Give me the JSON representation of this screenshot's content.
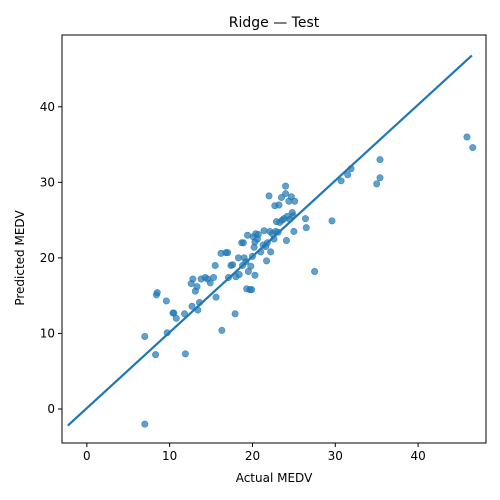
{
  "chart_data": {
    "type": "scatter",
    "title": "Ridge — Test",
    "xlabel": "Actual MEDV",
    "ylabel": "Predicted MEDV",
    "xlim": [
      -3.0,
      48.2
    ],
    "ylim": [
      -4.5,
      49.5
    ],
    "xticks": [
      0,
      10,
      20,
      30,
      40
    ],
    "yticks": [
      0,
      10,
      20,
      30,
      40
    ],
    "grid": false,
    "colors": {
      "points": "#1f77b4",
      "line": "#1f77b4"
    },
    "series": [
      {
        "type": "scatter",
        "points": [
          [
            7.0,
            -2.0
          ],
          [
            7.0,
            9.6
          ],
          [
            8.3,
            7.2
          ],
          [
            8.4,
            15.1
          ],
          [
            8.5,
            15.4
          ],
          [
            9.6,
            14.3
          ],
          [
            9.7,
            10.1
          ],
          [
            10.4,
            12.7
          ],
          [
            10.5,
            12.7
          ],
          [
            10.8,
            12.0
          ],
          [
            11.8,
            12.6
          ],
          [
            11.9,
            7.3
          ],
          [
            12.6,
            16.6
          ],
          [
            12.7,
            13.6
          ],
          [
            12.8,
            17.2
          ],
          [
            13.1,
            15.6
          ],
          [
            13.3,
            16.2
          ],
          [
            13.4,
            13.1
          ],
          [
            13.6,
            14.1
          ],
          [
            13.8,
            17.2
          ],
          [
            14.3,
            17.4
          ],
          [
            14.6,
            17.2
          ],
          [
            14.9,
            16.7
          ],
          [
            15.3,
            17.4
          ],
          [
            15.5,
            19.0
          ],
          [
            15.6,
            14.8
          ],
          [
            16.2,
            20.6
          ],
          [
            16.3,
            10.4
          ],
          [
            16.8,
            20.7
          ],
          [
            17.0,
            20.7
          ],
          [
            17.1,
            17.4
          ],
          [
            17.4,
            19.0
          ],
          [
            17.6,
            19.1
          ],
          [
            17.9,
            12.6
          ],
          [
            18.0,
            17.5
          ],
          [
            18.3,
            20.0
          ],
          [
            18.4,
            17.8
          ],
          [
            18.7,
            22.0
          ],
          [
            18.8,
            19.0
          ],
          [
            18.9,
            22.0
          ],
          [
            19.0,
            20.0
          ],
          [
            19.2,
            19.5
          ],
          [
            19.3,
            15.9
          ],
          [
            19.4,
            23.0
          ],
          [
            19.5,
            18.2
          ],
          [
            19.7,
            15.8
          ],
          [
            19.8,
            18.9
          ],
          [
            19.9,
            15.8
          ],
          [
            20.0,
            20.2
          ],
          [
            20.1,
            22.8
          ],
          [
            20.2,
            21.4
          ],
          [
            20.3,
            22.1
          ],
          [
            20.3,
            17.7
          ],
          [
            20.4,
            23.2
          ],
          [
            20.6,
            22.5
          ],
          [
            20.7,
            23.1
          ],
          [
            21.0,
            20.8
          ],
          [
            21.3,
            21.7
          ],
          [
            21.4,
            23.6
          ],
          [
            21.6,
            21.5
          ],
          [
            21.7,
            19.6
          ],
          [
            21.8,
            22.0
          ],
          [
            22.0,
            28.2
          ],
          [
            22.1,
            23.5
          ],
          [
            22.2,
            20.8
          ],
          [
            22.4,
            23.2
          ],
          [
            22.6,
            22.5
          ],
          [
            22.7,
            26.9
          ],
          [
            22.8,
            23.5
          ],
          [
            22.9,
            24.8
          ],
          [
            23.1,
            23.4
          ],
          [
            23.2,
            27.0
          ],
          [
            23.3,
            24.7
          ],
          [
            23.5,
            28.0
          ],
          [
            23.6,
            25.0
          ],
          [
            23.8,
            25.2
          ],
          [
            24.0,
            29.5
          ],
          [
            24.0,
            28.5
          ],
          [
            24.1,
            22.3
          ],
          [
            24.2,
            25.5
          ],
          [
            24.4,
            27.5
          ],
          [
            24.5,
            25.1
          ],
          [
            24.7,
            28.1
          ],
          [
            24.8,
            26.0
          ],
          [
            24.9,
            25.6
          ],
          [
            25.0,
            23.5
          ],
          [
            25.1,
            27.5
          ],
          [
            26.4,
            25.2
          ],
          [
            26.5,
            24.0
          ],
          [
            27.5,
            18.2
          ],
          [
            29.6,
            24.9
          ],
          [
            30.7,
            30.2
          ],
          [
            31.5,
            31.0
          ],
          [
            31.9,
            31.8
          ],
          [
            35.0,
            29.8
          ],
          [
            35.4,
            30.6
          ],
          [
            35.4,
            33.0
          ],
          [
            45.9,
            36.0
          ],
          [
            46.6,
            34.6
          ]
        ]
      },
      {
        "type": "line",
        "points": [
          [
            -2.3,
            -2.2
          ],
          [
            46.5,
            46.8
          ]
        ]
      }
    ]
  }
}
